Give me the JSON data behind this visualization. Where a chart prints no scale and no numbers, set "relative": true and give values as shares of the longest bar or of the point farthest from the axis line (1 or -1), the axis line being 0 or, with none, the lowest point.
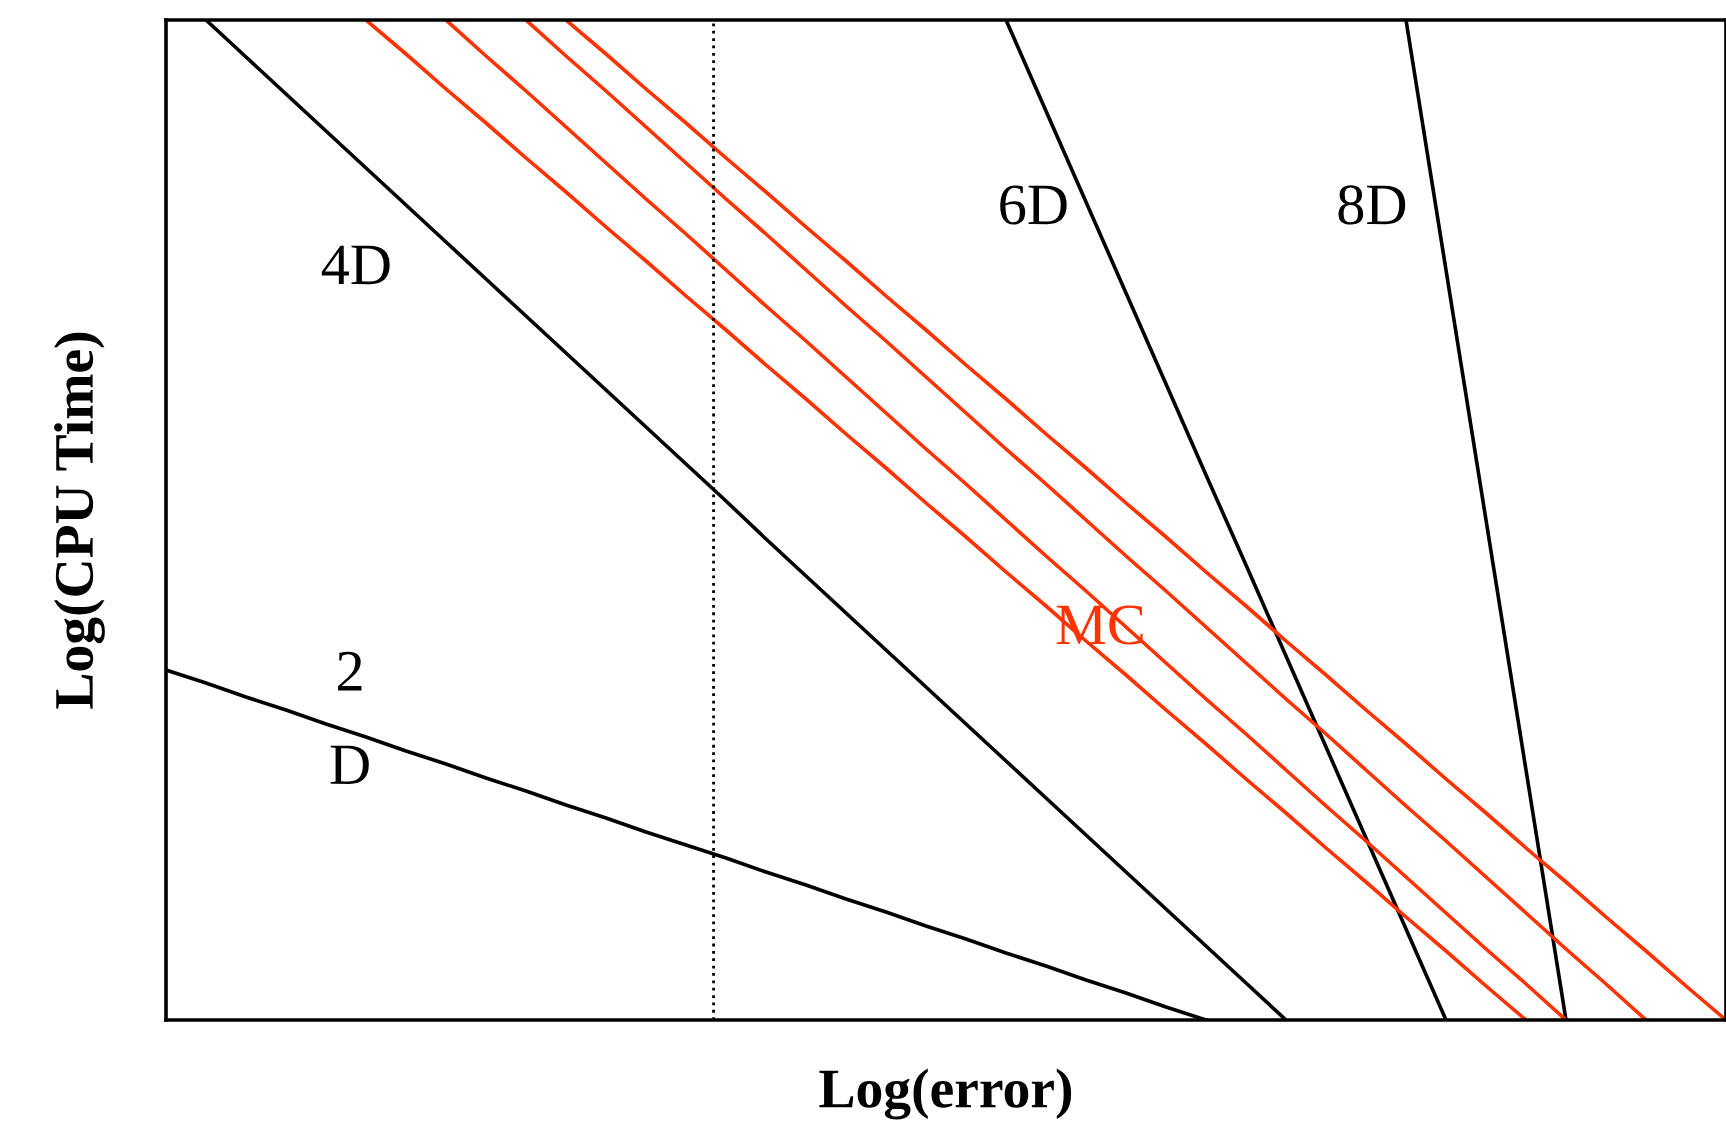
{
  "chart_data": {
    "type": "line",
    "relative": true,
    "xlabel": "Log(error)",
    "ylabel": "Log(CPU Time)",
    "legend": false,
    "marker": "none",
    "line_style": "solid",
    "categories": [
      null,
      null,
      null,
      null,
      null,
      null,
      null,
      null,
      null,
      null,
      null,
      null,
      null,
      null,
      null,
      null,
      null,
      null,
      null,
      null,
      null,
      null,
      null,
      null,
      null,
      null,
      null,
      null,
      null,
      null,
      null,
      null,
      null,
      null,
      null,
      null,
      null,
      null,
      null,
      null
    ],
    "series": [
      {
        "color": "#000000",
        "values": [
          0.35,
          0.337,
          0.323,
          0.31,
          0.296,
          0.283,
          0.269,
          0.256,
          0.242,
          0.229,
          0.215,
          0.202,
          0.188,
          0.175,
          0.162,
          0.148,
          0.135,
          0.121,
          0.108,
          0.094,
          0.081,
          0.067,
          0.054,
          0.04,
          0.027,
          0.013,
          0,
          null,
          null,
          null,
          null,
          null,
          null,
          null,
          null,
          null,
          null,
          null,
          null,
          null
        ]
      },
      {
        "color": "#000000",
        "values": [
          null,
          1,
          0.963,
          0.926,
          0.889,
          0.852,
          0.815,
          0.778,
          0.741,
          0.704,
          0.667,
          0.63,
          0.593,
          0.556,
          0.519,
          0.481,
          0.444,
          0.407,
          0.37,
          0.333,
          0.296,
          0.259,
          0.222,
          0.185,
          0.148,
          0.111,
          0.074,
          0.037,
          0,
          null,
          null,
          null,
          null,
          null,
          null,
          null,
          null,
          null,
          null,
          null
        ]
      },
      {
        "color": "#000000",
        "values": [
          null,
          null,
          null,
          null,
          null,
          null,
          null,
          null,
          null,
          null,
          null,
          null,
          null,
          null,
          null,
          null,
          null,
          null,
          null,
          null,
          null,
          1,
          0.909,
          0.818,
          0.727,
          0.636,
          0.545,
          0.455,
          0.364,
          0.273,
          0.182,
          0.091,
          0,
          null,
          null,
          null,
          null,
          null,
          null,
          null
        ]
      },
      {
        "color": "#000000",
        "values": [
          null,
          null,
          null,
          null,
          null,
          null,
          null,
          null,
          null,
          null,
          null,
          null,
          null,
          null,
          null,
          null,
          null,
          null,
          null,
          null,
          null,
          null,
          null,
          null,
          null,
          null,
          null,
          null,
          null,
          null,
          null,
          1,
          0.75,
          0.5,
          0.25,
          0,
          null,
          null,
          null,
          null
        ]
      },
      {
        "color": "#ff3300",
        "values": [
          null,
          null,
          null,
          null,
          null,
          1,
          0.966,
          0.931,
          0.897,
          0.862,
          0.828,
          0.793,
          0.759,
          0.724,
          0.69,
          0.655,
          0.621,
          0.586,
          0.552,
          0.517,
          0.483,
          0.448,
          0.414,
          0.379,
          0.345,
          0.31,
          0.276,
          0.241,
          0.207,
          0.172,
          0.138,
          0.103,
          0.069,
          0.034,
          0,
          null,
          null,
          null,
          null,
          null
        ]
      },
      {
        "color": "#ff3300",
        "values": [
          null,
          null,
          null,
          null,
          null,
          null,
          null,
          1,
          0.964,
          0.929,
          0.893,
          0.857,
          0.821,
          0.786,
          0.75,
          0.714,
          0.679,
          0.643,
          0.607,
          0.571,
          0.536,
          0.5,
          0.464,
          0.429,
          0.393,
          0.357,
          0.321,
          0.286,
          0.25,
          0.214,
          0.179,
          0.143,
          0.107,
          0.071,
          0.036,
          0,
          null,
          null,
          null,
          null
        ]
      },
      {
        "color": "#ff3300",
        "values": [
          null,
          null,
          null,
          null,
          null,
          null,
          null,
          null,
          null,
          1,
          0.964,
          0.929,
          0.893,
          0.857,
          0.821,
          0.786,
          0.75,
          0.714,
          0.679,
          0.643,
          0.607,
          0.571,
          0.536,
          0.5,
          0.464,
          0.429,
          0.393,
          0.357,
          0.321,
          0.286,
          0.25,
          0.214,
          0.179,
          0.143,
          0.107,
          0.071,
          0.036,
          0,
          null,
          null
        ]
      },
      {
        "color": "#ff3300",
        "values": [
          null,
          null,
          null,
          null,
          null,
          null,
          null,
          null,
          null,
          null,
          1,
          0.966,
          0.931,
          0.897,
          0.862,
          0.828,
          0.793,
          0.759,
          0.724,
          0.69,
          0.655,
          0.621,
          0.586,
          0.552,
          0.517,
          0.483,
          0.448,
          0.414,
          0.379,
          0.345,
          0.31,
          0.276,
          0.241,
          0.207,
          0.172,
          0.138,
          0.103,
          0.069,
          0.034,
          0
        ]
      }
    ],
    "annotations": [
      "4D",
      "2\nD",
      "6D",
      "8D",
      "MC"
    ]
  }
}
